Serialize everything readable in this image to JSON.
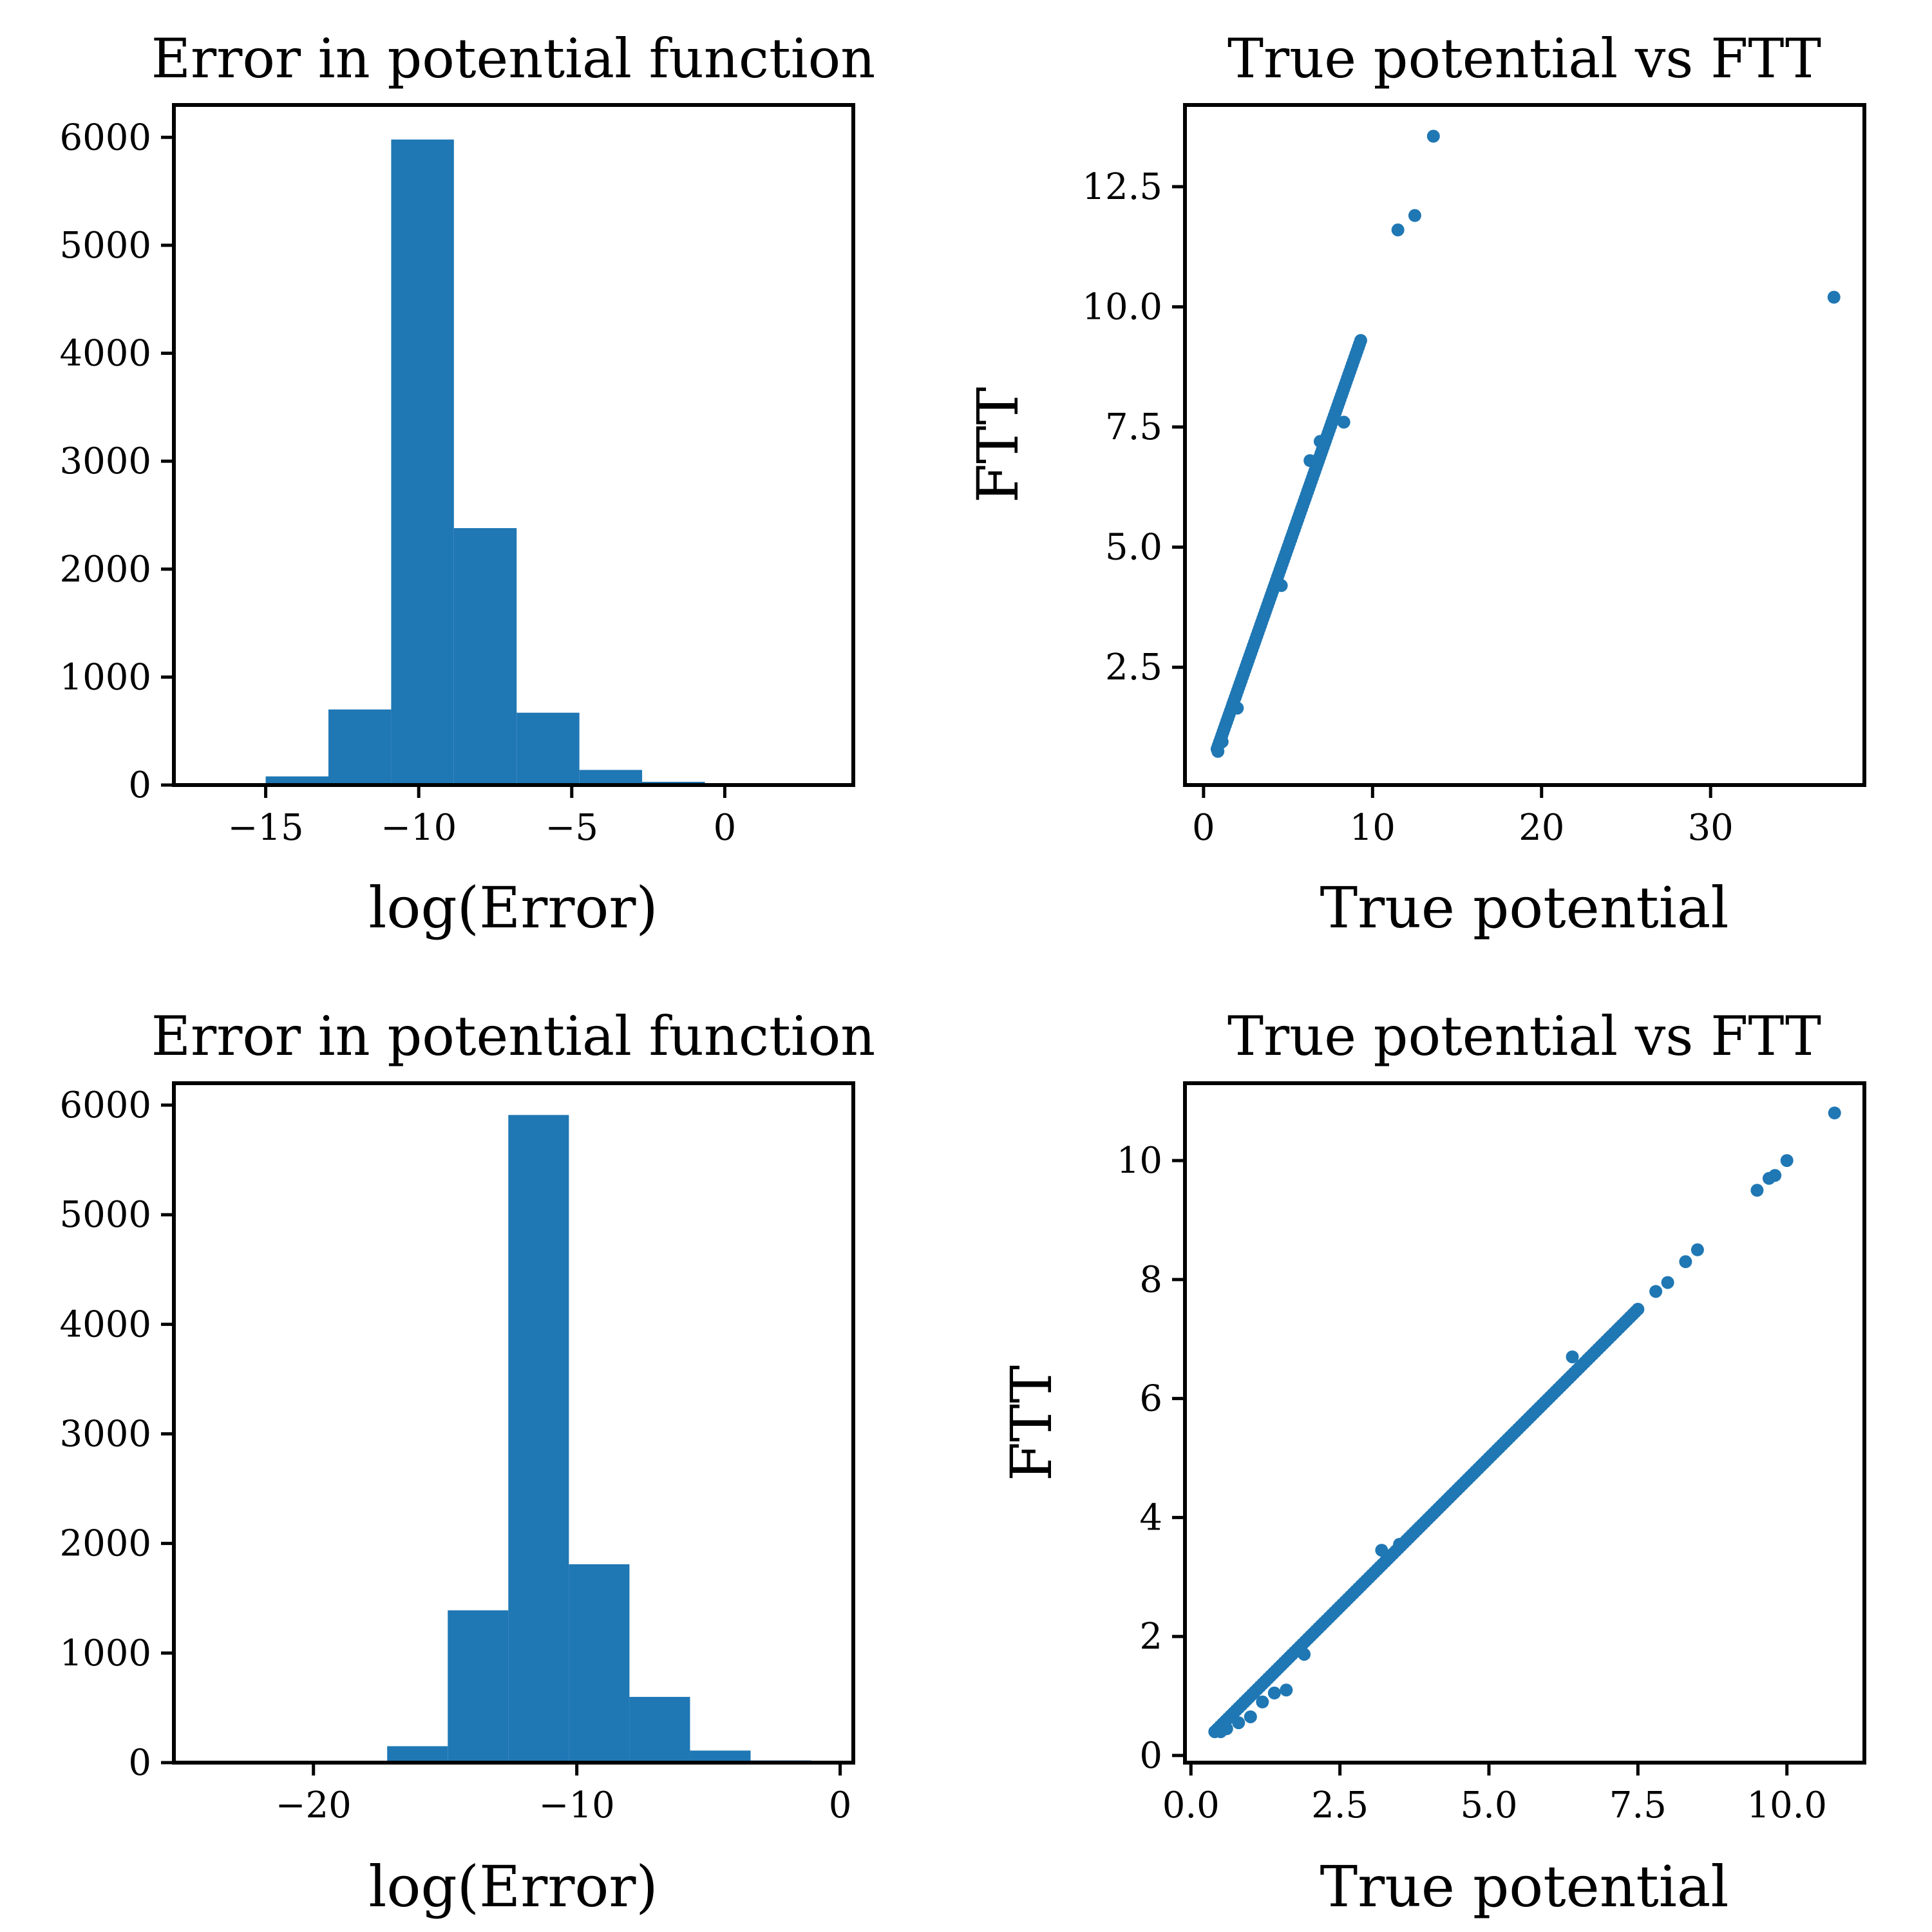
{
  "colors": {
    "bar": "#1f77b4",
    "marker": "#1f77b4",
    "axes": "#000000"
  },
  "chart_data": [
    {
      "id": "hist-top",
      "type": "bar",
      "title": "Error in potential function",
      "xlabel": "log(Error)",
      "ylabel": "",
      "xlim": [
        -18,
        4.2
      ],
      "ylim": [
        0,
        6300
      ],
      "xticks": [
        -15,
        -10,
        -5,
        0
      ],
      "xtick_labels": [
        "−15",
        "−10",
        "−5",
        "0"
      ],
      "yticks": [
        0,
        1000,
        2000,
        3000,
        4000,
        5000,
        6000
      ],
      "ytick_labels": [
        "0",
        "1000",
        "2000",
        "3000",
        "4000",
        "5000",
        "6000"
      ],
      "bin_edges": [
        -15.0,
        -12.95,
        -10.9,
        -8.85,
        -6.8,
        -4.75,
        -2.7,
        -0.65,
        1.4,
        3.45
      ],
      "values": [
        80,
        700,
        5980,
        2380,
        670,
        140,
        30,
        10,
        5
      ],
      "grid": false
    },
    {
      "id": "scatter-top",
      "type": "scatter",
      "title": "True potential vs FTT",
      "xlabel": "True potential",
      "ylabel": "FTT",
      "xlim": [
        -1.1,
        39.1
      ],
      "ylim": [
        0.05,
        14.2
      ],
      "xticks": [
        0,
        10,
        20,
        30
      ],
      "xtick_labels": [
        "0",
        "10",
        "20",
        "30"
      ],
      "yticks": [
        2.5,
        5.0,
        7.5,
        10.0,
        12.5
      ],
      "ytick_labels": [
        "2.5",
        "5.0",
        "7.5",
        "10.0",
        "12.5"
      ],
      "trend": {
        "x_start": 0.8,
        "x_end": 9.3,
        "slope": 1.0,
        "intercept": 0.0,
        "points": 120
      },
      "points": [
        [
          0.85,
          0.75
        ],
        [
          1.1,
          0.95
        ],
        [
          2.0,
          1.65
        ],
        [
          4.6,
          4.2
        ],
        [
          6.3,
          6.8
        ],
        [
          6.9,
          7.2
        ],
        [
          8.3,
          7.6
        ],
        [
          11.5,
          11.6
        ],
        [
          12.5,
          11.9
        ],
        [
          13.6,
          13.55
        ],
        [
          37.3,
          10.2
        ]
      ],
      "grid": false
    },
    {
      "id": "hist-bottom",
      "type": "bar",
      "title": "Error in potential function",
      "xlabel": "log(Error)",
      "ylabel": "",
      "xlim": [
        -25.3,
        0.5
      ],
      "ylim": [
        0,
        6200
      ],
      "xticks": [
        -20,
        -10,
        0
      ],
      "xtick_labels": [
        "−20",
        "−10",
        "0"
      ],
      "yticks": [
        0,
        1000,
        2000,
        3000,
        4000,
        5000,
        6000
      ],
      "ytick_labels": [
        "0",
        "1000",
        "2000",
        "3000",
        "4000",
        "5000",
        "6000"
      ],
      "bin_edges": [
        -24.1,
        -21.8,
        -19.5,
        -17.2,
        -14.9,
        -12.6,
        -10.3,
        -8.0,
        -5.7,
        -3.4,
        -1.1
      ],
      "values": [
        2,
        4,
        10,
        150,
        1390,
        5910,
        1810,
        600,
        110,
        20
      ],
      "grid": false
    },
    {
      "id": "scatter-bottom",
      "type": "scatter",
      "title": "True potential vs FTT",
      "xlabel": "True potential",
      "ylabel": "FTT",
      "xlim": [
        -0.1,
        11.3
      ],
      "ylim": [
        -0.12,
        11.3
      ],
      "xticks": [
        0.0,
        2.5,
        5.0,
        7.5,
        10.0
      ],
      "xtick_labels": [
        "0.0",
        "2.5",
        "5.0",
        "7.5",
        "10.0"
      ],
      "yticks": [
        0,
        2,
        4,
        6,
        8,
        10
      ],
      "ytick_labels": [
        "0",
        "2",
        "4",
        "6",
        "8",
        "10"
      ],
      "trend": {
        "x_start": 0.4,
        "x_end": 7.5,
        "slope": 1.0,
        "intercept": 0.0,
        "points": 160
      },
      "points": [
        [
          0.5,
          0.4
        ],
        [
          0.6,
          0.45
        ],
        [
          0.8,
          0.55
        ],
        [
          1.0,
          0.65
        ],
        [
          1.2,
          0.9
        ],
        [
          1.4,
          1.05
        ],
        [
          1.6,
          1.1
        ],
        [
          1.9,
          1.7
        ],
        [
          3.2,
          3.45
        ],
        [
          3.5,
          3.55
        ],
        [
          6.4,
          6.7
        ],
        [
          7.8,
          7.8
        ],
        [
          8.0,
          7.95
        ],
        [
          8.3,
          8.3
        ],
        [
          8.5,
          8.5
        ],
        [
          9.5,
          9.5
        ],
        [
          9.7,
          9.7
        ],
        [
          9.8,
          9.75
        ],
        [
          10.0,
          10.0
        ],
        [
          10.8,
          10.8
        ]
      ],
      "grid": false
    }
  ]
}
